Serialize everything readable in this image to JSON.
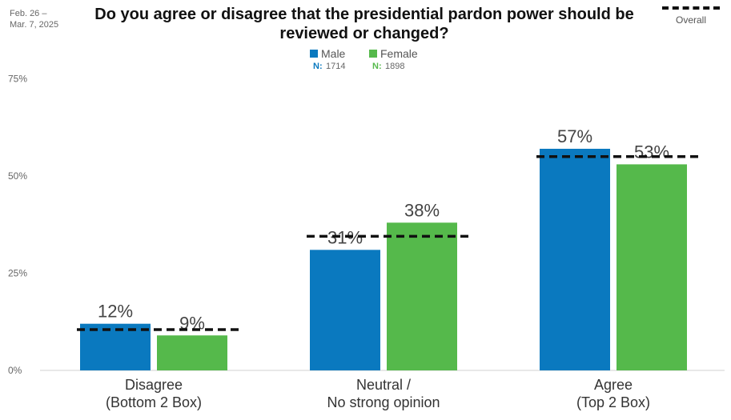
{
  "header": {
    "date_line1": "Feb. 26 –",
    "date_line2": "Mar. 7, 2025",
    "overall_label": "Overall"
  },
  "chart_data": {
    "type": "bar",
    "title": "Do you agree or disagree that the presidential pardon power should be reviewed or changed?",
    "categories": [
      [
        "Disagree",
        "(Bottom 2 Box)"
      ],
      [
        "Neutral /",
        "No strong opinion"
      ],
      [
        "Agree",
        "(Top 2 Box)"
      ]
    ],
    "series": [
      {
        "name": "Male",
        "n_label": "N:",
        "n_value": "1714",
        "color": "#0a79bf",
        "values": [
          12,
          31,
          57
        ],
        "labels": [
          "12%",
          "31%",
          "57%"
        ]
      },
      {
        "name": "Female",
        "n_label": "N:",
        "n_value": "1898",
        "color": "#55b94b",
        "values": [
          9,
          38,
          53
        ],
        "labels": [
          "9%",
          "38%",
          "53%"
        ]
      }
    ],
    "overall": {
      "name": "Overall",
      "values": [
        10.5,
        34.5,
        55
      ]
    },
    "ylim": [
      0,
      75
    ],
    "yticks": [
      0,
      25,
      50,
      75
    ],
    "ytick_labels": [
      "0%",
      "25%",
      "50%",
      "75%"
    ],
    "xlabel": "",
    "ylabel": "",
    "grid": false,
    "legend": "top-center"
  }
}
